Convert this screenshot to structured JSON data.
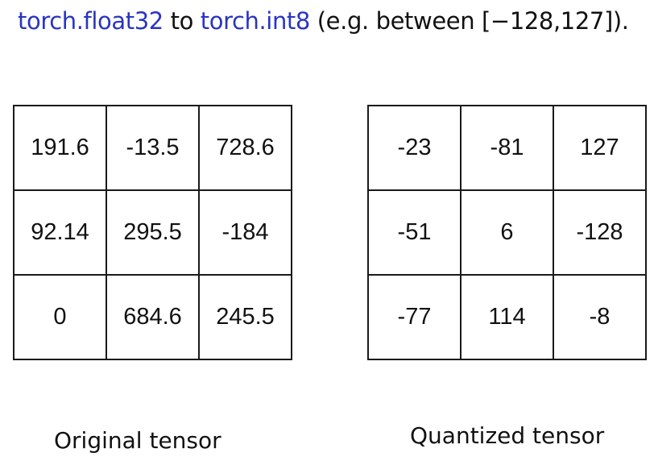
{
  "heading": {
    "from_type": "torch.float32",
    "connector": " to ",
    "to_type": "torch.int8",
    "suffix": " (e.g. between [−128,127])."
  },
  "original_tensor": {
    "caption": "Original tensor",
    "rows": [
      [
        "191.6",
        "-13.5",
        "728.6"
      ],
      [
        "92.14",
        "295.5",
        "-184"
      ],
      [
        "0",
        "684.6",
        "245.5"
      ]
    ]
  },
  "quantized_tensor": {
    "caption": "Quantized tensor",
    "rows": [
      [
        "-23",
        "-81",
        "127"
      ],
      [
        "-51",
        "6",
        "-128"
      ],
      [
        "-77",
        "114",
        "-8"
      ]
    ]
  }
}
